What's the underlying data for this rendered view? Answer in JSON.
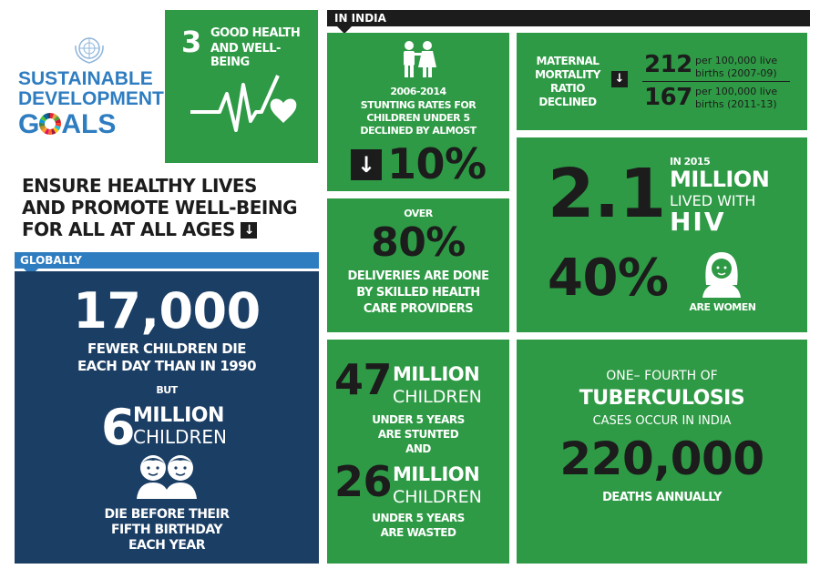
{
  "logo": {
    "line1": "SUSTAINABLE",
    "line2": "DEVELOPMENT",
    "line3_prefix": "G",
    "line3_suffix": "ALS",
    "colors": [
      "#e5243b",
      "#dda63a",
      "#4c9f38",
      "#c5192d",
      "#ff3a21",
      "#26bde2",
      "#fcc30b",
      "#a21942",
      "#fd6925",
      "#dd1367",
      "#fd9d24",
      "#bf8b2e",
      "#3f7e44",
      "#0a97d9",
      "#56c02b",
      "#00689d",
      "#19486a"
    ]
  },
  "goal": {
    "number": "3",
    "title_line1": "GOOD HEALTH",
    "title_line2": "AND WELL-BEING",
    "icon": "heartbeat-heart-icon"
  },
  "headline": {
    "line1": "ENSURE HEALTHY LIVES",
    "line2": "AND PROMOTE WELL-BEING",
    "line3": "FOR ALL AT ALL AGES",
    "arrow": "↓"
  },
  "globally": {
    "tab": "GLOBALLY",
    "stat1": "17,000",
    "stat1_text_line1": "FEWER CHILDREN DIE",
    "stat1_text_line2": "EACH DAY THAN IN 1990",
    "but": "BUT",
    "stat2_num": "6",
    "stat2_unit_line1": "MILLION",
    "stat2_unit_line2": "CHILDREN",
    "icon": "two-children-icon",
    "stat2_text_line1": "DIE BEFORE THEIR",
    "stat2_text_line2": "FIFTH BIRTHDAY",
    "stat2_text_line3": "EACH YEAR"
  },
  "india": {
    "tab": "IN INDIA",
    "stunting": {
      "icon": "boy-girl-icon",
      "years": "2006-2014",
      "line1": "STUNTING RATES FOR",
      "line2": "CHILDREN UNDER 5",
      "line3": "DECLINED BY ALMOST",
      "arrow": "↓",
      "value": "10%"
    },
    "maternal": {
      "line1": "MATERNAL",
      "line2": "MORTALITY",
      "line3": "RATIO",
      "line4": "DECLINED",
      "arrow": "↓",
      "v1": "212",
      "v1_text1": "per 100,000 live",
      "v1_text2": "births (2007-09)",
      "v2": "167",
      "v2_text1": "per 100,000 live",
      "v2_text2": "births (2011-13)"
    },
    "deliveries": {
      "over": "OVER",
      "value": "80%",
      "line1": "DELIVERIES ARE DONE",
      "line2": "BY SKILLED HEALTH",
      "line3": "CARE PROVIDERS"
    },
    "hiv": {
      "value": "2.1",
      "in_year": "IN 2015",
      "unit": "MILLION",
      "lived": "LIVED WITH",
      "hiv": "HIV",
      "pct": "40%",
      "icon": "woman-icon",
      "women": "ARE WOMEN"
    },
    "stunted": {
      "v1": "47",
      "v1_unit1": "MILLION",
      "v1_unit2": "CHILDREN",
      "t1": "UNDER 5 YEARS",
      "t2": "ARE STUNTED",
      "and": "AND",
      "v2": "26",
      "v2_unit1": "MILLION",
      "v2_unit2": "CHILDREN",
      "t3": "UNDER 5 YEARS",
      "t4": "ARE WASTED"
    },
    "tb": {
      "line1": "ONE– FOURTH OF",
      "title": "TUBERCULOSIS",
      "line2": "CASES OCCUR IN INDIA",
      "value": "220,000",
      "line3": "DEATHS ANNUALLY"
    }
  }
}
